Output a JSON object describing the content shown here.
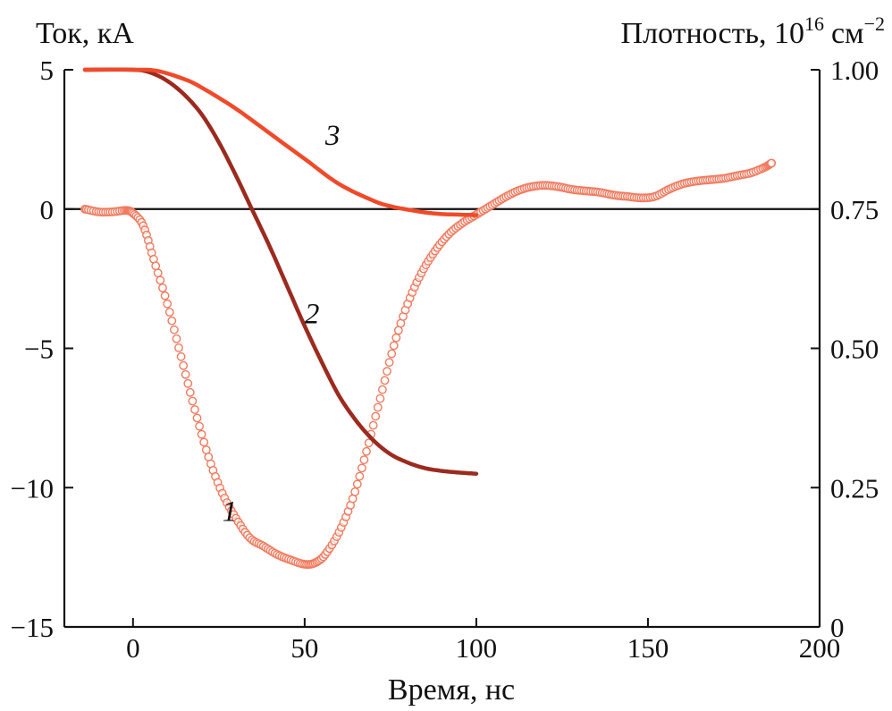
{
  "chart_data": {
    "type": "line",
    "title": "",
    "xlabel": "Время, нс",
    "ylabel_left": "Ток, кА",
    "ylabel_right_prefix": "Плотность, 10",
    "ylabel_right_exp": "16",
    "ylabel_right_unit": "см",
    "ylabel_right_unit_exp": "−2",
    "xlim": [
      -20,
      200
    ],
    "ylim_left": [
      -15,
      5
    ],
    "ylim_right": [
      0,
      1.0
    ],
    "x_ticks": [
      {
        "value": 0,
        "label": "0"
      },
      {
        "value": 50,
        "label": "50"
      },
      {
        "value": 100,
        "label": "100"
      },
      {
        "value": 150,
        "label": "150"
      },
      {
        "value": 200,
        "label": "200"
      }
    ],
    "y_left_ticks": [
      {
        "value": 5,
        "label": "5"
      },
      {
        "value": 0,
        "label": "0"
      },
      {
        "value": -5,
        "label": "−5"
      },
      {
        "value": -10,
        "label": "−10"
      },
      {
        "value": -15,
        "label": "−15"
      }
    ],
    "y_right_ticks": [
      {
        "value": 1.0,
        "label": "1.00"
      },
      {
        "value": 0.75,
        "label": "0.75"
      },
      {
        "value": 0.5,
        "label": "0.50"
      },
      {
        "value": 0.25,
        "label": "0.25"
      },
      {
        "value": 0,
        "label": "0"
      }
    ],
    "zero_line": 0,
    "series": [
      {
        "name": "1",
        "label": "1",
        "axis": "left",
        "style": "markers",
        "color": "#f07a5e",
        "label_at": {
          "x": 26,
          "y": -11.2
        },
        "x": [
          -14,
          -10,
          -6,
          -2,
          0,
          3,
          6,
          10,
          14,
          18,
          22,
          26,
          30,
          34,
          38,
          42,
          46,
          50,
          53,
          56,
          60,
          64,
          68,
          72,
          76,
          80,
          84,
          88,
          92,
          96,
          100,
          104,
          108,
          112,
          116,
          120,
          124,
          128,
          132,
          136,
          140,
          144,
          148,
          152,
          156,
          160,
          164,
          168,
          172,
          176,
          180,
          184,
          186
        ],
        "y": [
          0.0,
          -0.1,
          -0.1,
          -0.05,
          -0.15,
          -0.6,
          -1.8,
          -3.4,
          -5.3,
          -7.2,
          -8.9,
          -10.2,
          -11.1,
          -11.8,
          -12.1,
          -12.4,
          -12.6,
          -12.75,
          -12.7,
          -12.4,
          -11.6,
          -10.4,
          -8.7,
          -6.8,
          -4.9,
          -3.4,
          -2.3,
          -1.5,
          -0.9,
          -0.5,
          -0.2,
          0.1,
          0.4,
          0.65,
          0.8,
          0.85,
          0.8,
          0.7,
          0.65,
          0.6,
          0.5,
          0.45,
          0.4,
          0.45,
          0.7,
          0.9,
          1.0,
          1.05,
          1.1,
          1.2,
          1.3,
          1.5,
          1.65
        ]
      },
      {
        "name": "2",
        "label": "2",
        "axis": "right",
        "style": "line",
        "color": "#9c2a1e",
        "label_at": {
          "x": 50,
          "y": 0.545
        },
        "x": [
          -14,
          0,
          5,
          10,
          15,
          20,
          25,
          30,
          35,
          40,
          45,
          50,
          55,
          60,
          65,
          70,
          75,
          80,
          85,
          90,
          95,
          100
        ],
        "y": [
          1.0,
          1.0,
          0.995,
          0.98,
          0.955,
          0.92,
          0.87,
          0.81,
          0.745,
          0.68,
          0.61,
          0.54,
          0.475,
          0.415,
          0.37,
          0.335,
          0.31,
          0.295,
          0.285,
          0.28,
          0.277,
          0.275
        ]
      },
      {
        "name": "3",
        "label": "3",
        "axis": "right",
        "style": "line",
        "color": "#ef4a2a",
        "label_at": {
          "x": 56,
          "y": 0.865
        },
        "x": [
          -14,
          0,
          7,
          15,
          20,
          30,
          40,
          50,
          60,
          70,
          75,
          80,
          85,
          90,
          95,
          100
        ],
        "y": [
          1.0,
          1.0,
          0.998,
          0.983,
          0.968,
          0.93,
          0.885,
          0.84,
          0.795,
          0.765,
          0.755,
          0.749,
          0.744,
          0.741,
          0.74,
          0.739
        ]
      }
    ]
  }
}
